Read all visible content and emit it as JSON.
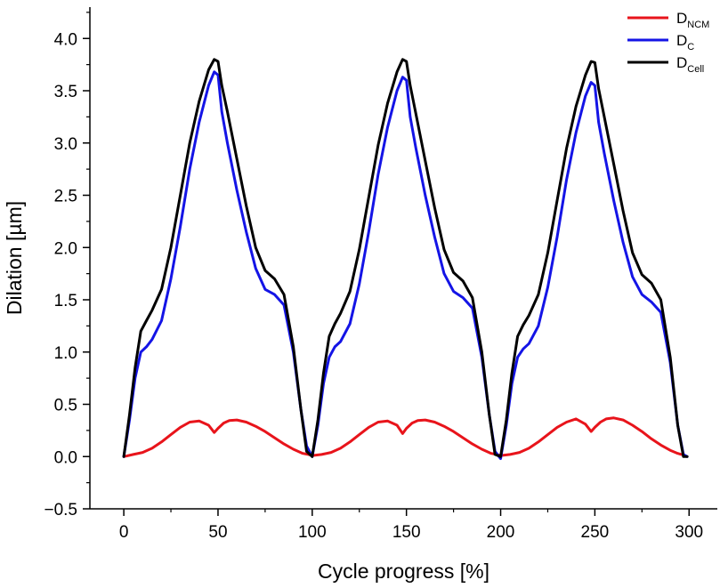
{
  "chart_data": {
    "type": "line",
    "xlabel": "Cycle progress [%]",
    "ylabel": "Dilation [µm]",
    "xlim": [
      -18,
      315
    ],
    "ylim": [
      -0.5,
      4.3
    ],
    "x_ticks": [
      0,
      50,
      100,
      150,
      200,
      250,
      300
    ],
    "y_ticks": [
      -0.5,
      0.0,
      0.5,
      1.0,
      1.5,
      2.0,
      2.5,
      3.0,
      3.5,
      4.0
    ],
    "x_tick_labels": [
      "0",
      "50",
      "100",
      "150",
      "200",
      "250",
      "300"
    ],
    "y_tick_labels": [
      "−0.5",
      "0.0",
      "0.5",
      "1.0",
      "1.5",
      "2.0",
      "2.5",
      "3.0",
      "3.5",
      "4.0"
    ],
    "legend_position": "top-right",
    "grid": false,
    "series": [
      {
        "name": "D",
        "subscript": "NCM",
        "color": "#e8141b",
        "x": [
          0,
          5,
          10,
          15,
          20,
          25,
          30,
          35,
          40,
          45,
          48,
          50,
          53,
          56,
          60,
          65,
          70,
          75,
          80,
          85,
          90,
          95,
          98,
          100,
          105,
          110,
          115,
          120,
          125,
          130,
          135,
          140,
          145,
          148,
          150,
          153,
          156,
          160,
          165,
          170,
          175,
          180,
          185,
          190,
          195,
          198,
          200,
          205,
          210,
          215,
          220,
          225,
          230,
          235,
          240,
          245,
          248,
          250,
          253,
          256,
          260,
          265,
          270,
          275,
          280,
          285,
          290,
          294,
          296
        ],
        "y": [
          0.0,
          0.02,
          0.04,
          0.08,
          0.14,
          0.21,
          0.28,
          0.33,
          0.34,
          0.3,
          0.23,
          0.27,
          0.32,
          0.345,
          0.35,
          0.33,
          0.29,
          0.24,
          0.18,
          0.12,
          0.07,
          0.03,
          0.02,
          0.01,
          0.02,
          0.04,
          0.08,
          0.14,
          0.21,
          0.28,
          0.33,
          0.34,
          0.3,
          0.22,
          0.27,
          0.32,
          0.345,
          0.35,
          0.33,
          0.29,
          0.24,
          0.18,
          0.12,
          0.07,
          0.03,
          0.02,
          0.01,
          0.02,
          0.04,
          0.08,
          0.14,
          0.21,
          0.28,
          0.33,
          0.36,
          0.31,
          0.24,
          0.28,
          0.33,
          0.36,
          0.37,
          0.35,
          0.3,
          0.24,
          0.17,
          0.11,
          0.06,
          0.03,
          0.02
        ]
      },
      {
        "name": "D",
        "subscript": "C",
        "color": "#1414e6",
        "x": [
          0,
          3,
          6,
          9,
          12,
          15,
          20,
          25,
          30,
          35,
          40,
          45,
          48,
          50,
          52,
          55,
          60,
          65,
          70,
          75,
          80,
          85,
          90,
          94,
          97,
          100,
          103,
          106,
          109,
          112,
          115,
          120,
          125,
          130,
          135,
          140,
          145,
          148,
          150,
          152,
          155,
          160,
          165,
          170,
          175,
          180,
          185,
          190,
          194,
          197,
          200,
          203,
          206,
          209,
          212,
          215,
          220,
          225,
          230,
          235,
          240,
          245,
          248,
          250,
          252,
          255,
          260,
          265,
          270,
          275,
          280,
          285,
          290,
          294,
          297,
          299
        ],
        "y": [
          0.0,
          0.35,
          0.75,
          1.0,
          1.05,
          1.12,
          1.3,
          1.7,
          2.2,
          2.75,
          3.2,
          3.55,
          3.68,
          3.65,
          3.3,
          3.0,
          2.55,
          2.15,
          1.8,
          1.6,
          1.55,
          1.45,
          1.0,
          0.45,
          0.1,
          0.0,
          0.3,
          0.7,
          0.95,
          1.05,
          1.1,
          1.27,
          1.65,
          2.15,
          2.7,
          3.15,
          3.5,
          3.63,
          3.6,
          3.25,
          2.95,
          2.5,
          2.1,
          1.75,
          1.58,
          1.52,
          1.42,
          0.95,
          0.4,
          0.05,
          -0.02,
          0.3,
          0.7,
          0.95,
          1.03,
          1.08,
          1.25,
          1.62,
          2.1,
          2.65,
          3.1,
          3.45,
          3.58,
          3.55,
          3.2,
          2.9,
          2.45,
          2.05,
          1.72,
          1.55,
          1.48,
          1.38,
          0.9,
          0.3,
          0.02,
          0.0
        ]
      },
      {
        "name": "D",
        "subscript": "Cell",
        "color": "#000000",
        "x": [
          0,
          3,
          6,
          9,
          12,
          15,
          20,
          25,
          30,
          35,
          40,
          45,
          48,
          50,
          52,
          55,
          60,
          65,
          70,
          75,
          80,
          85,
          90,
          94,
          97,
          100,
          103,
          106,
          109,
          112,
          115,
          120,
          125,
          130,
          135,
          140,
          145,
          148,
          150,
          152,
          155,
          160,
          165,
          170,
          175,
          180,
          185,
          190,
          194,
          197,
          200,
          203,
          206,
          209,
          212,
          215,
          220,
          225,
          230,
          235,
          240,
          245,
          248,
          250,
          252,
          255,
          260,
          265,
          270,
          275,
          280,
          285,
          290,
          294,
          297,
          299
        ],
        "y": [
          0.0,
          0.4,
          0.85,
          1.2,
          1.3,
          1.4,
          1.6,
          2.0,
          2.5,
          3.0,
          3.4,
          3.7,
          3.8,
          3.78,
          3.55,
          3.3,
          2.85,
          2.4,
          2.0,
          1.78,
          1.7,
          1.55,
          1.05,
          0.45,
          0.05,
          0.0,
          0.35,
          0.8,
          1.15,
          1.27,
          1.37,
          1.58,
          1.98,
          2.48,
          2.98,
          3.38,
          3.68,
          3.8,
          3.78,
          3.55,
          3.28,
          2.83,
          2.38,
          1.98,
          1.76,
          1.68,
          1.52,
          1.0,
          0.4,
          0.02,
          0.0,
          0.35,
          0.8,
          1.15,
          1.26,
          1.35,
          1.55,
          1.95,
          2.45,
          2.95,
          3.35,
          3.65,
          3.78,
          3.77,
          3.52,
          3.25,
          2.8,
          2.35,
          1.95,
          1.74,
          1.66,
          1.5,
          0.95,
          0.3,
          0.0,
          0.0
        ]
      }
    ]
  }
}
